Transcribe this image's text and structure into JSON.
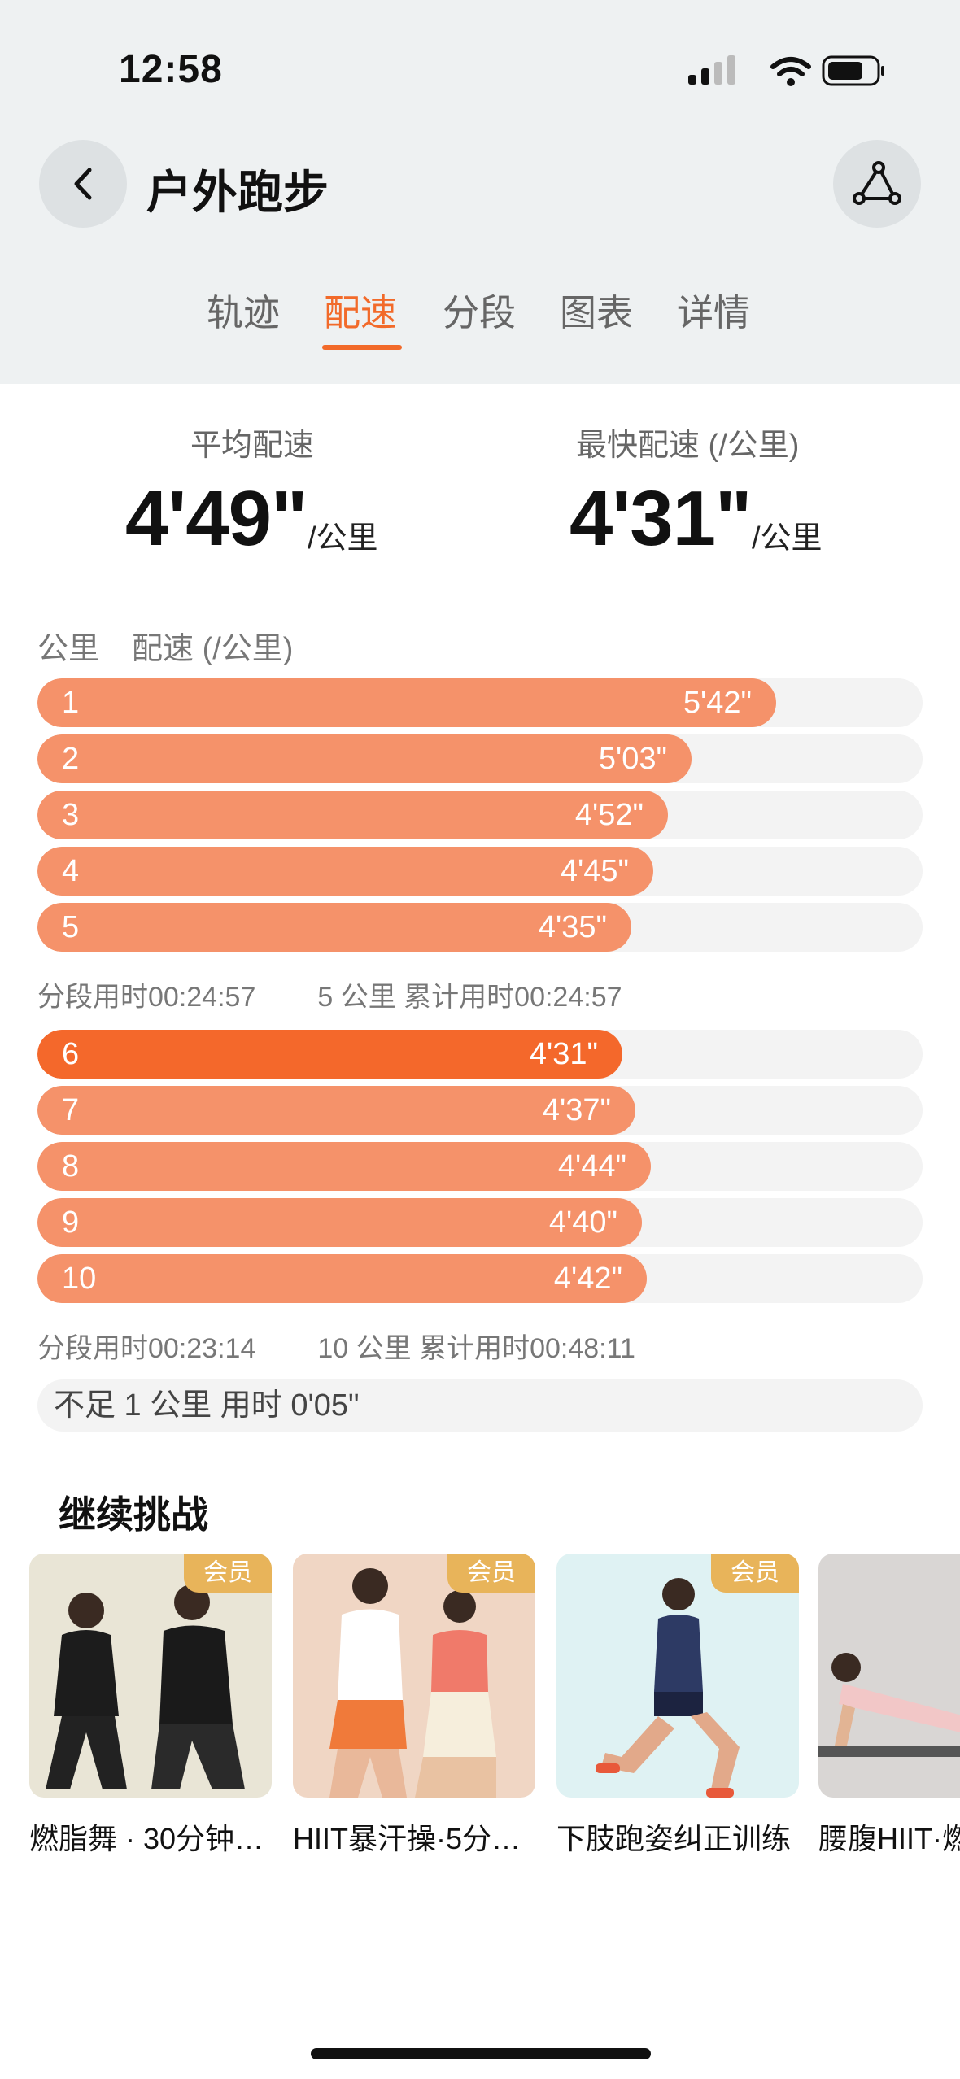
{
  "status_bar": {
    "time": "12:58"
  },
  "header": {
    "title": "户外跑步"
  },
  "tabs": [
    {
      "label": "轨迹",
      "active": false
    },
    {
      "label": "配速",
      "active": true
    },
    {
      "label": "分段",
      "active": false
    },
    {
      "label": "图表",
      "active": false
    },
    {
      "label": "详情",
      "active": false
    }
  ],
  "stats": {
    "avg_label": "平均配速",
    "avg_value": "4'49\"",
    "avg_unit": "/公里",
    "fastest_label": "最快配速 (/公里)",
    "fastest_value": "4'31\"",
    "fastest_unit": "/公里"
  },
  "list_header": {
    "km": "公里",
    "pace": "配速 (/公里)"
  },
  "splits": [
    {
      "km": "1",
      "pace": "5'42\"",
      "seconds": 342
    },
    {
      "km": "2",
      "pace": "5'03\"",
      "seconds": 303
    },
    {
      "km": "3",
      "pace": "4'52\"",
      "seconds": 292
    },
    {
      "km": "4",
      "pace": "4'45\"",
      "seconds": 285
    },
    {
      "km": "5",
      "pace": "4'35\"",
      "seconds": 275
    },
    {
      "km": "6",
      "pace": "4'31\"",
      "seconds": 271,
      "fastest": true
    },
    {
      "km": "7",
      "pace": "4'37\"",
      "seconds": 277
    },
    {
      "km": "8",
      "pace": "4'44\"",
      "seconds": 284
    },
    {
      "km": "9",
      "pace": "4'40\"",
      "seconds": 280
    },
    {
      "km": "10",
      "pace": "4'42\"",
      "seconds": 282
    }
  ],
  "summaries": [
    {
      "segment": "分段用时00:24:57",
      "cumulative": "5 公里 累计用时00:24:57"
    },
    {
      "segment": "分段用时00:23:14",
      "cumulative": "10 公里 累计用时00:48:11"
    }
  ],
  "remainder": "不足 1 公里 用时 0'05\"",
  "challenge": {
    "title": "继续挑战",
    "cards": [
      {
        "title": "燃脂舞 · 30分钟…",
        "badge": "会员"
      },
      {
        "title": "HIIT暴汗操·5分…",
        "badge": "会员"
      },
      {
        "title": "下肢跑姿纠正训练",
        "badge": "会员"
      },
      {
        "title": "腰腹HIIT·燃",
        "badge": ""
      }
    ]
  },
  "colors": {
    "accent": "#f26a2a",
    "bar": "#f5926a",
    "bar_fastest": "#f4682b",
    "badge": "#e8b45a"
  }
}
